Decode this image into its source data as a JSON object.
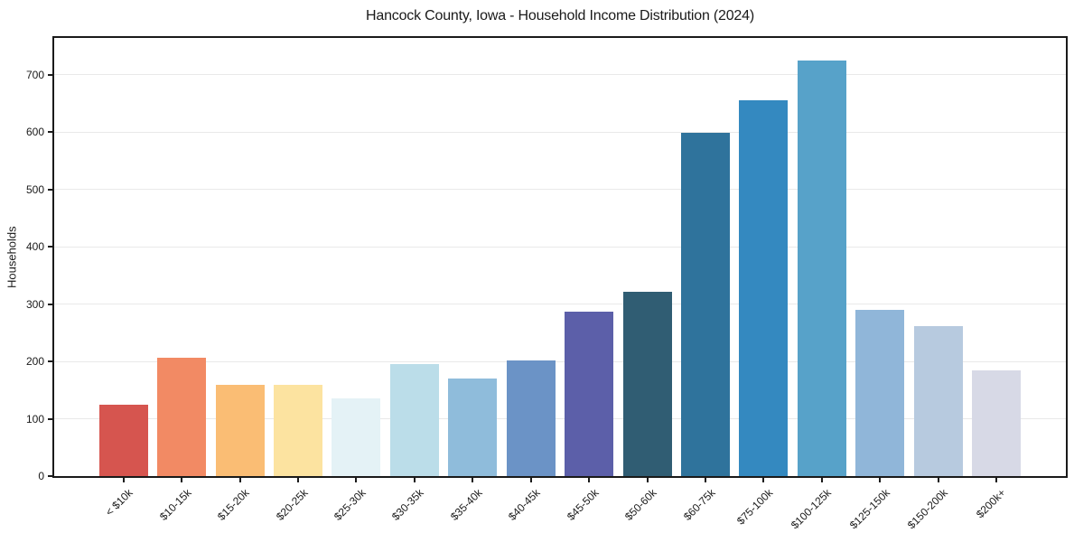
{
  "chart_data": {
    "type": "bar",
    "title": "Hancock County, Iowa - Household Income Distribution (2024)",
    "xlabel": "",
    "ylabel": "Households",
    "categories": [
      "< $10k",
      "$10-15k",
      "$15-20k",
      "$20-25k",
      "$25-30k",
      "$30-35k",
      "$35-40k",
      "$40-45k",
      "$45-50k",
      "$50-60k",
      "$60-75k",
      "$75-100k",
      "$100-125k",
      "$125-150k",
      "$150-200k",
      "$200k+"
    ],
    "values": [
      125,
      207,
      159,
      159,
      135,
      196,
      170,
      201,
      287,
      321,
      598,
      655,
      725,
      290,
      262,
      184
    ],
    "bar_colors": [
      "#d6554f",
      "#f28a64",
      "#fabd74",
      "#fce3a0",
      "#e4f2f6",
      "#bbdde9",
      "#8fbcdb",
      "#6b93c6",
      "#5c5fa9",
      "#305d73",
      "#2f739c",
      "#3489c0",
      "#57a2c9",
      "#90b6d9",
      "#b7cadf",
      "#d7d9e6"
    ],
    "ylim": [
      0,
      764
    ],
    "yticks": [
      0,
      100,
      200,
      300,
      400,
      500,
      600,
      700
    ],
    "grid": "horizontal",
    "legend": "none"
  },
  "colors": {
    "background": "#ffffff",
    "axis": "#1a1a1a",
    "gridline": "#e9e9e9",
    "text": "#1a1a1a"
  }
}
